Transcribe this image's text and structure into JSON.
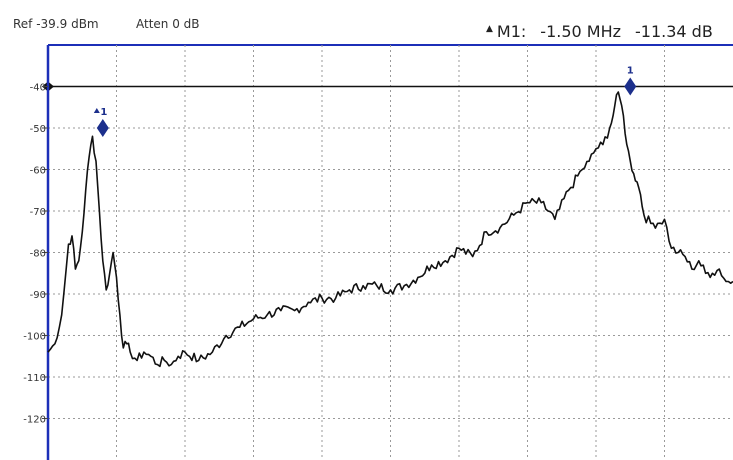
{
  "header": {
    "ref_level": "Ref -39.9 dBm",
    "attenuation": "Atten 0 dB",
    "marker_label": "M1:",
    "marker_freq": "-1.50 MHz",
    "marker_level": "-11.34 dB"
  },
  "chart_data": {
    "type": "line",
    "title": "",
    "xlabel": "",
    "ylabel": "",
    "ylim": [
      -130,
      -30
    ],
    "y_ticks": [
      "-40",
      "-50",
      "-60",
      "-70",
      "-80",
      "-90",
      "-100",
      "-110",
      "-120"
    ],
    "grid": true,
    "reference_line": -40,
    "colors": {
      "trace": "#111111",
      "marker": "#1c2f8c",
      "axis": "#1c2fb8",
      "grid": "#9a9a9a"
    },
    "markers": [
      {
        "label": "1",
        "x": 0.08,
        "y": -50,
        "delta": true
      },
      {
        "label": "1",
        "x": 0.85,
        "y": -40,
        "delta": false
      }
    ],
    "series": [
      {
        "x": [
          0.0,
          0.01,
          0.02,
          0.03,
          0.035,
          0.04,
          0.045,
          0.05,
          0.055,
          0.06,
          0.065,
          0.07,
          0.075,
          0.08,
          0.085,
          0.09,
          0.095,
          0.1,
          0.105,
          0.11,
          0.115,
          0.12,
          0.13,
          0.14,
          0.15,
          0.16,
          0.17,
          0.18,
          0.19,
          0.2,
          0.22,
          0.24,
          0.26,
          0.28,
          0.3,
          0.32,
          0.34,
          0.36,
          0.38,
          0.4,
          0.42,
          0.44,
          0.46,
          0.48,
          0.5,
          0.52,
          0.54,
          0.56,
          0.58,
          0.6,
          0.62,
          0.64,
          0.66,
          0.68,
          0.7,
          0.72,
          0.74,
          0.76,
          0.78,
          0.79,
          0.8,
          0.81,
          0.82,
          0.825,
          0.83,
          0.835,
          0.84,
          0.845,
          0.85,
          0.855,
          0.86,
          0.865,
          0.87,
          0.88,
          0.89,
          0.9,
          0.91,
          0.92,
          0.93,
          0.94,
          0.95,
          0.96,
          0.97,
          0.98,
          0.99,
          1.0
        ],
        "values": [
          -104,
          -102,
          -95,
          -78,
          -76,
          -84,
          -82,
          -75,
          -65,
          -57,
          -52,
          -58,
          -70,
          -82,
          -89,
          -85,
          -80,
          -86,
          -95,
          -103,
          -102,
          -104,
          -106,
          -104,
          -105,
          -107,
          -106,
          -107,
          -105,
          -104,
          -106,
          -104,
          -100,
          -98,
          -96,
          -95,
          -94,
          -94,
          -92,
          -91,
          -91,
          -89,
          -88,
          -88,
          -89,
          -88,
          -86,
          -83,
          -82,
          -79,
          -81,
          -75,
          -74,
          -71,
          -68,
          -68,
          -72,
          -65,
          -60,
          -58,
          -55,
          -54,
          -50,
          -47,
          -42,
          -43,
          -47,
          -54,
          -58,
          -61,
          -63,
          -66,
          -71,
          -73,
          -73,
          -72,
          -79,
          -80,
          -81,
          -84,
          -82,
          -85,
          -85,
          -84,
          -87,
          -87
        ]
      }
    ]
  }
}
